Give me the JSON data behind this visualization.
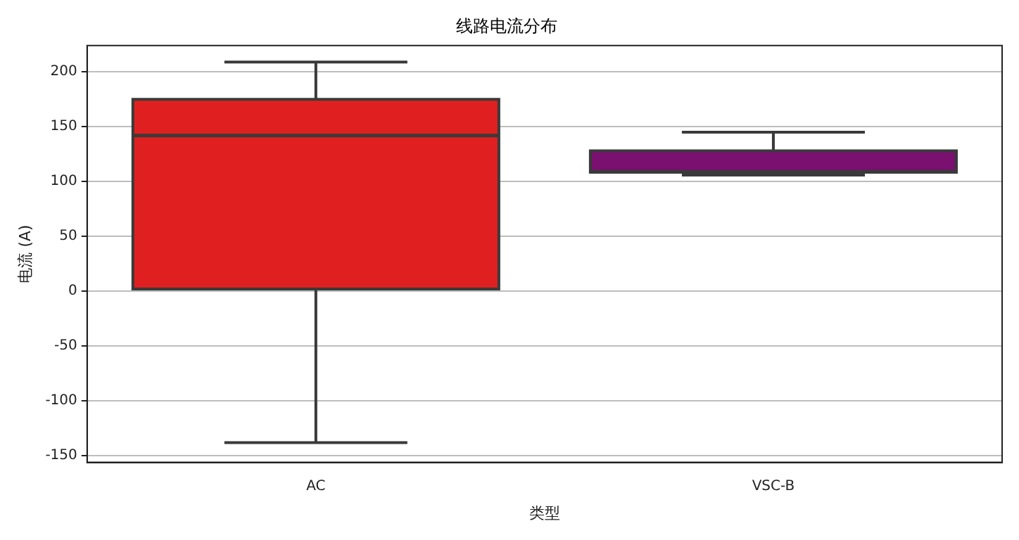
{
  "chart_data": {
    "type": "box",
    "title": "线路电流分布",
    "xlabel": "类型",
    "ylabel": "电流 (A)",
    "categories": [
      "AC",
      "VSC-B"
    ],
    "colors": [
      "#e02020",
      "#7a1070"
    ],
    "boxes": [
      {
        "low": -138,
        "q1": 2,
        "median": 142,
        "q3": 175,
        "high": 209
      },
      {
        "low": 106,
        "q1": 108.5,
        "median": 109,
        "q3": 128,
        "high": 145
      }
    ],
    "ylim": [
      -156,
      224
    ],
    "yticks": [
      -150,
      -100,
      -50,
      0,
      50,
      100,
      150,
      200
    ],
    "grid": "y",
    "legend": false
  }
}
